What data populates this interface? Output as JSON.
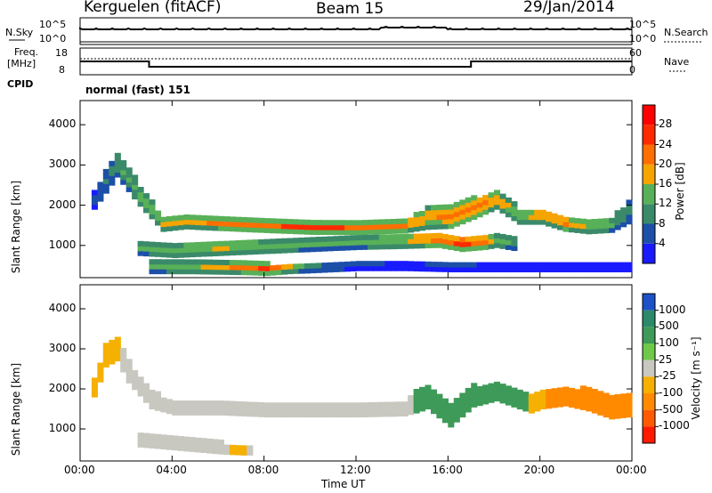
{
  "header": {
    "station": "Kerguelen (fitACF)",
    "beam": "Beam 15",
    "date": "29/Jan/2014"
  },
  "strip_labels": {
    "nsky": "N.Sky",
    "nsearch": "N.Search",
    "freq_line1": "Freq.",
    "freq_line2": "[MHz]",
    "nave": "Nave",
    "cpid": "CPID",
    "cpid_value": "normal (fast) 151"
  },
  "strip_ticks": {
    "noise_left": [
      "10^5",
      "10^0"
    ],
    "noise_right": [
      "10^5",
      "10^0"
    ],
    "freq_left": [
      "18",
      "8"
    ],
    "nave_right": [
      "60",
      "0"
    ]
  },
  "colors": {
    "power_scale": [
      "#1a1aff",
      "#1c4fa8",
      "#3a8a6a",
      "#58b058",
      "#f5a400",
      "#ff6e00",
      "#ff2a00",
      "#ff0000"
    ],
    "velocity_scale": [
      "#1e50c8",
      "#2c8a6a",
      "#3e9a58",
      "#6ec84a",
      "#c8c8c0",
      "#f5b000",
      "#ff8a00",
      "#ff5a00",
      "#ff1a00"
    ]
  },
  "chart_data": [
    {
      "type": "heatmap",
      "name": "power-panel",
      "ylabel": "Slant Range [km]",
      "y_ticks": [
        "1000",
        "2000",
        "3000",
        "4000"
      ],
      "ylim": [
        200,
        4600
      ],
      "colorbar_label": "Power [dB]",
      "colorbar_ticks": [
        "4",
        "8",
        "12",
        "16",
        "20",
        "24",
        "28"
      ],
      "colorbar_range": [
        0,
        32
      ],
      "bands": [
        {
          "x": [
            0.5,
            1.5,
            2.5,
            3.5,
            4.5,
            6,
            8,
            10,
            12,
            14,
            15,
            16,
            17,
            18,
            19,
            20,
            21,
            22,
            23,
            23.8
          ],
          "center": [
            2100,
            3000,
            2200,
            1500,
            1550,
            1500,
            1450,
            1400,
            1400,
            1450,
            1650,
            1700,
            1900,
            2100,
            1700,
            1700,
            1500,
            1450,
            1500,
            1800
          ],
          "width": [
            400,
            600,
            450,
            300,
            280,
            260,
            260,
            250,
            260,
            280,
            500,
            550,
            500,
            400,
            350,
            350,
            300,
            320,
            350,
            500
          ],
          "value": [
            6,
            12,
            16,
            18,
            20,
            22,
            24,
            26,
            24,
            22,
            20,
            22,
            24,
            20,
            18,
            20,
            22,
            18,
            14,
            10
          ]
        },
        {
          "x": [
            2.5,
            4,
            6,
            8,
            10,
            12,
            14,
            15.5,
            16.5,
            17.5,
            18,
            19
          ],
          "center": [
            900,
            850,
            900,
            950,
            1000,
            1050,
            1100,
            1100,
            1000,
            1050,
            1100,
            1000
          ],
          "width": [
            300,
            300,
            300,
            300,
            300,
            300,
            350,
            300,
            300,
            300,
            300,
            300
          ],
          "value": [
            14,
            16,
            18,
            16,
            14,
            14,
            18,
            24,
            28,
            22,
            16,
            12
          ]
        },
        {
          "x": [
            3,
            5,
            7,
            8,
            9,
            10,
            12,
            14,
            16,
            18,
            20,
            22,
            24
          ],
          "center": [
            450,
            420,
            400,
            380,
            400,
            420,
            450,
            450,
            420,
            420,
            420,
            420,
            420
          ],
          "width": [
            300,
            250,
            250,
            250,
            200,
            200,
            150,
            150,
            150,
            150,
            150,
            150,
            150
          ],
          "value": [
            14,
            16,
            22,
            26,
            18,
            10,
            6,
            5,
            6,
            5,
            5,
            5,
            5
          ]
        }
      ]
    },
    {
      "type": "heatmap",
      "name": "velocity-panel",
      "ylabel": "Slant Range [km]",
      "y_ticks": [
        "1000",
        "2000",
        "3000",
        "4000"
      ],
      "ylim": [
        200,
        4600
      ],
      "colorbar_label": "Velocity [m s⁻¹]",
      "colorbar_ticks": [
        "1000",
        "500",
        "100",
        "25",
        "-25",
        "-100",
        "-500",
        "-1000"
      ],
      "bands": [
        {
          "x": [
            0.5,
            1,
            1.5,
            2,
            3,
            4,
            6,
            8,
            10,
            12,
            14,
            14.5
          ],
          "center": [
            2000,
            2800,
            3000,
            2400,
            1700,
            1500,
            1500,
            1450,
            1450,
            1450,
            1500,
            1600
          ],
          "width": [
            400,
            500,
            600,
            500,
            400,
            300,
            300,
            300,
            300,
            300,
            350,
            400
          ],
          "value": [
            -100,
            -80,
            -40,
            0,
            0,
            0,
            0,
            0,
            0,
            0,
            0,
            -10
          ]
        },
        {
          "x": [
            14.5,
            15,
            16,
            17,
            18,
            19,
            19.5
          ],
          "center": [
            1700,
            1800,
            1300,
            1800,
            1900,
            1700,
            1600
          ],
          "width": [
            600,
            600,
            500,
            500,
            400,
            400,
            400
          ],
          "value": [
            150,
            200,
            300,
            250,
            200,
            250,
            100
          ]
        },
        {
          "x": [
            19.5,
            20,
            21,
            22,
            23,
            23.8
          ],
          "center": [
            1600,
            1700,
            1800,
            1700,
            1500,
            1600
          ],
          "width": [
            400,
            400,
            450,
            500,
            500,
            600
          ],
          "value": [
            -50,
            -100,
            -200,
            -250,
            -300,
            -350
          ]
        },
        {
          "x": [
            2.5,
            4,
            5,
            6,
            7,
            7.5
          ],
          "center": [
            700,
            600,
            550,
            500,
            450,
            450
          ],
          "width": [
            300,
            250,
            250,
            250,
            200,
            200
          ],
          "value": [
            0,
            -10,
            -20,
            -20,
            -40,
            0
          ]
        }
      ]
    }
  ],
  "xaxis": {
    "ticks": [
      "00:00",
      "04:00",
      "08:00",
      "12:00",
      "16:00",
      "20:00",
      "00:00"
    ],
    "label": "Time UT"
  },
  "freq_trace": {
    "x": [
      0,
      3,
      3,
      17,
      17,
      24
    ],
    "y": [
      13,
      13,
      11,
      11,
      13,
      13
    ]
  }
}
